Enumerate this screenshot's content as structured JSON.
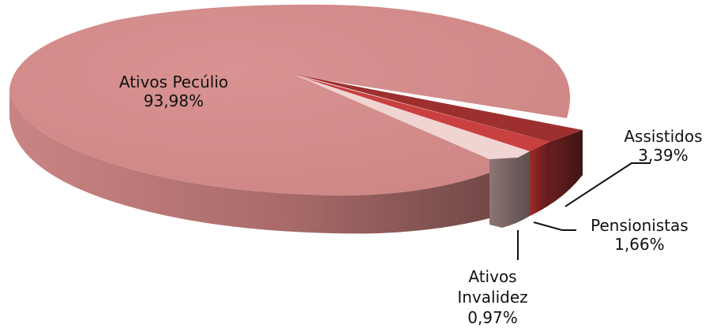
{
  "chart_data": {
    "type": "pie",
    "style": "3d-exploded",
    "categories": [
      "Ativos Pecúlio",
      "Assistidos",
      "Pensionistas",
      "Ativos Invalidez"
    ],
    "values": [
      93.98,
      3.39,
      1.66,
      0.97
    ],
    "value_labels": [
      "93,98%",
      "3,39%",
      "1,66%",
      "0,97%"
    ],
    "colors": [
      "#d88f8c",
      "#9e2f2f",
      "#c84040",
      "#f0d4d2"
    ],
    "legend": "none",
    "title": ""
  }
}
